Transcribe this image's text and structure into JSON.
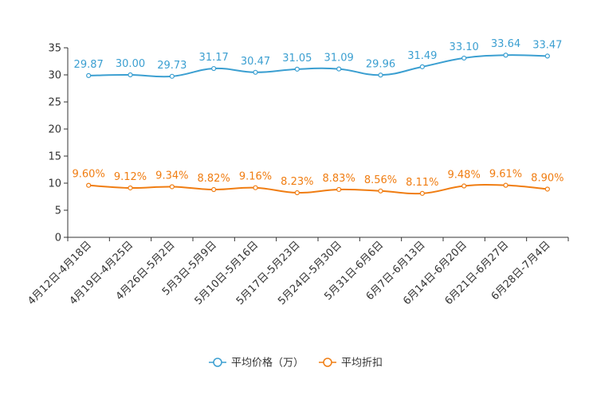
{
  "chart_data": {
    "type": "line",
    "title": "",
    "xlabel": "",
    "ylabel": "",
    "ylim": [
      0,
      35
    ],
    "yticks": [
      "0",
      "5",
      "10",
      "15",
      "20",
      "25",
      "30",
      "35"
    ],
    "grid": false,
    "legend_position": "bottom-center",
    "categories": [
      "4月12日-4月18日",
      "4月19日-4月25日",
      "4月26日-5月2日",
      "5月3日-5月9日",
      "5月10日-5月16日",
      "5月17日-5月23日",
      "5月24日-5月30日",
      "5月31日-6月6日",
      "6月7日-6月13日",
      "6月14日-6月20日",
      "6月21日-6月27日",
      "6月28日-7月4日"
    ],
    "series": [
      {
        "name": "平均价格（万）",
        "color": "#3b9fd1",
        "values": [
          29.87,
          30.0,
          29.73,
          31.17,
          30.47,
          31.05,
          31.09,
          29.96,
          31.49,
          33.1,
          33.64,
          33.47
        ],
        "labels": [
          "29.87",
          "30.00",
          "29.73",
          "31.17",
          "30.47",
          "31.05",
          "31.09",
          "29.96",
          "31.49",
          "33.10",
          "33.64",
          "33.47"
        ]
      },
      {
        "name": "平均折扣",
        "color": "#f07d12",
        "values": [
          9.6,
          9.12,
          9.34,
          8.82,
          9.16,
          8.23,
          8.83,
          8.56,
          8.11,
          9.48,
          9.61,
          8.9
        ],
        "labels": [
          "9.60%",
          "9.12%",
          "9.34%",
          "8.82%",
          "9.16%",
          "8.23%",
          "8.83%",
          "8.56%",
          "8.11%",
          "9.48%",
          "9.61%",
          "8.90%"
        ]
      }
    ]
  }
}
